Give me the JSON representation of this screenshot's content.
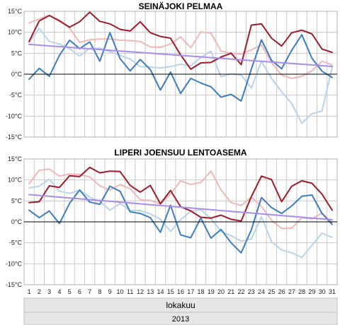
{
  "colors": {
    "dark_red": "#9e1b2c",
    "light_red": "#f0b6b8",
    "dark_blue": "#3d7dbf",
    "light_blue": "#b7d3ea",
    "trend": "#a98bea",
    "grid": "#c8c8c8",
    "band": "#e6e6e6"
  },
  "x_axis": {
    "ticks": [
      "1",
      "2",
      "3",
      "4",
      "5",
      "6",
      "7",
      "8",
      "9",
      "10",
      "11",
      "12",
      "13",
      "14",
      "15",
      "16",
      "17",
      "18",
      "19",
      "20",
      "21",
      "22",
      "23",
      "24",
      "25",
      "26",
      "27",
      "28",
      "29",
      "30",
      "31"
    ],
    "month": "lokakuu",
    "year": "2013"
  },
  "chart_data": [
    {
      "type": "line",
      "title": "SEINÄJOKI PELMAA",
      "x": [
        1,
        2,
        3,
        4,
        5,
        6,
        7,
        8,
        9,
        10,
        11,
        12,
        13,
        14,
        15,
        16,
        17,
        18,
        19,
        20,
        21,
        22,
        23,
        24,
        25,
        26,
        27,
        28,
        29,
        30,
        31
      ],
      "ylim": [
        -15,
        15
      ],
      "yticks": [
        "-15°C",
        "-10°C",
        "-5°C",
        "0°C",
        "5°C",
        "10°C",
        "15°C"
      ],
      "grid": true,
      "series": [
        {
          "color_key": "light_red",
          "values": [
            12.2,
            13.2,
            14.0,
            12.9,
            11.0,
            7.6,
            8.2,
            8.4,
            8.4,
            8.1,
            8.0,
            7.8,
            6.5,
            6.4,
            7.2,
            8.9,
            6.3,
            10.1,
            9.8,
            5.5,
            5.0,
            4.8,
            5.8,
            7.0,
            2.8,
            -0.2,
            -1.0,
            -0.5,
            0.8,
            3.1,
            2.2
          ]
        },
        {
          "color_key": "light_blue",
          "values": [
            7.6,
            10.9,
            7.8,
            7.2,
            6.1,
            4.3,
            6.2,
            6.2,
            5.4,
            4.5,
            3.6,
            1.8,
            1.7,
            1.5,
            1.8,
            2.4,
            2.0,
            4.0,
            5.5,
            -0.6,
            0.1,
            -0.2,
            -3.3,
            3.1,
            -1.0,
            -4.2,
            -7.0,
            -11.7,
            -9.4,
            -8.8,
            1.6
          ]
        },
        {
          "color_key": "dark_red",
          "values": [
            7.8,
            12.7,
            14.0,
            12.7,
            11.2,
            12.5,
            14.8,
            12.6,
            12.0,
            10.7,
            10.3,
            12.5,
            9.9,
            9.0,
            8.6,
            4.6,
            1.2,
            2.7,
            2.8,
            4.1,
            5.0,
            2.3,
            11.7,
            12.0,
            8.6,
            6.7,
            9.9,
            10.5,
            9.6,
            6.0,
            5.2
          ]
        },
        {
          "color_key": "dark_blue",
          "values": [
            -1.2,
            1.4,
            -0.5,
            4.5,
            8.1,
            6.1,
            7.7,
            3.1,
            9.9,
            3.7,
            0.8,
            3.5,
            1.1,
            -3.8,
            0.5,
            -4.6,
            -1.0,
            -2.1,
            -3.0,
            -5.5,
            -4.8,
            -6.4,
            1.2,
            8.2,
            3.3,
            1.3,
            5.7,
            9.4,
            3.8,
            0.7,
            -0.8
          ]
        },
        {
          "color_key": "trend",
          "values": [
            7.1,
            6.925,
            6.75,
            6.575,
            6.4,
            6.225,
            6.05,
            5.875,
            5.7,
            5.525,
            5.35,
            5.175,
            5.0,
            4.825,
            4.65,
            4.475,
            4.3,
            4.125,
            3.95,
            3.775,
            3.6,
            3.425,
            3.25,
            3.075,
            2.9,
            2.725,
            2.55,
            2.375,
            2.2,
            2.025,
            1.85
          ]
        }
      ]
    },
    {
      "type": "line",
      "title": "LIPERI JOENSUU LENTOASEMA",
      "x": [
        1,
        2,
        3,
        4,
        5,
        6,
        7,
        8,
        9,
        10,
        11,
        12,
        13,
        14,
        15,
        16,
        17,
        18,
        19,
        20,
        21,
        22,
        23,
        24,
        25,
        26,
        27,
        28,
        29,
        30,
        31
      ],
      "ylim": [
        -15,
        15
      ],
      "yticks": [
        "-15°C",
        "-10°C",
        "-5°C",
        "0°C",
        "5°C",
        "10°C",
        "15°C"
      ],
      "grid": true,
      "series": [
        {
          "color_key": "light_red",
          "values": [
            9.1,
            12.3,
            12.6,
            10.9,
            11.4,
            11.3,
            10.7,
            8.6,
            7.6,
            8.9,
            7.9,
            5.3,
            5.1,
            4.3,
            6.6,
            9.8,
            8.9,
            9.4,
            12.1,
            7.6,
            4.6,
            3.9,
            5.9,
            3.7,
            0.4,
            -1.6,
            -1.5,
            1.0,
            0.7,
            2.1,
            -0.1
          ]
        },
        {
          "color_key": "light_blue",
          "values": [
            8.1,
            8.5,
            10.2,
            7.3,
            6.8,
            7.5,
            5.9,
            4.9,
            2.8,
            4.4,
            2.7,
            2.7,
            1.9,
            0.6,
            -2.3,
            0.5,
            2.5,
            2.9,
            0.8,
            -2.3,
            -3.3,
            -4.6,
            -4.1,
            1.2,
            -4.7,
            -6.7,
            -7.4,
            -8.5,
            -5.6,
            -2.7,
            -3.7
          ]
        },
        {
          "color_key": "dark_red",
          "values": [
            4.6,
            4.8,
            8.6,
            8.2,
            11.0,
            10.8,
            13.0,
            11.7,
            12.1,
            12.0,
            8.7,
            7.1,
            8.7,
            4.3,
            7.5,
            3.6,
            2.6,
            1.1,
            0.9,
            1.6,
            0.6,
            0.2,
            6.0,
            10.9,
            10.1,
            4.8,
            8.5,
            9.8,
            9.2,
            6.6,
            2.8
          ]
        },
        {
          "color_key": "dark_blue",
          "values": [
            2.8,
            1.0,
            2.6,
            -0.4,
            4.4,
            7.6,
            4.7,
            4.2,
            8.5,
            7.3,
            2.4,
            2.0,
            1.0,
            -2.5,
            4.0,
            -3.1,
            -3.8,
            0.9,
            -3.9,
            -1.8,
            -5.0,
            -7.4,
            -1.9,
            5.8,
            3.4,
            2.0,
            3.8,
            6.1,
            6.4,
            2.0,
            -0.6
          ]
        },
        {
          "color_key": "trend",
          "values": [
            6.5,
            6.3,
            6.1,
            5.9,
            5.7,
            5.5,
            5.3,
            5.1,
            4.9,
            4.7,
            4.5,
            4.3,
            4.1,
            3.9,
            3.7,
            3.5,
            3.3,
            3.1,
            2.9,
            2.7,
            2.5,
            2.3,
            2.1,
            1.9,
            1.7,
            1.5,
            1.3,
            1.1,
            0.9,
            0.7,
            0.5
          ]
        }
      ]
    }
  ]
}
